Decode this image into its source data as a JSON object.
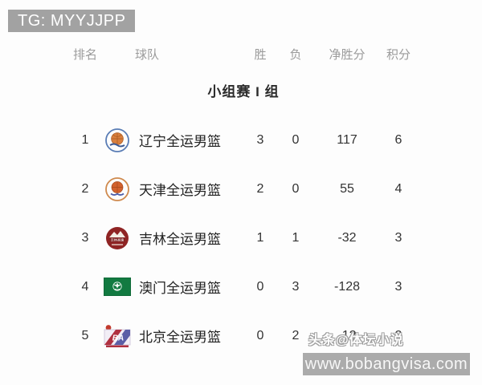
{
  "badge": {
    "label": "TG: MYYJJPP"
  },
  "table": {
    "headers": {
      "rank": "排名",
      "team": "球队",
      "wins": "胜",
      "losses": "负",
      "diff": "净胜分",
      "points": "积分"
    },
    "group_title": "小组赛 I 组",
    "rows": [
      {
        "rank": "1",
        "team": "辽宁全运男篮",
        "wins": "3",
        "losses": "0",
        "diff": "117",
        "points": "6",
        "logo": "liaoning-badge"
      },
      {
        "rank": "2",
        "team": "天津全运男篮",
        "wins": "2",
        "losses": "0",
        "diff": "55",
        "points": "4",
        "logo": "tianjin-badge"
      },
      {
        "rank": "3",
        "team": "吉林全运男篮",
        "wins": "1",
        "losses": "1",
        "diff": "-32",
        "points": "3",
        "logo": "jilin-badge"
      },
      {
        "rank": "4",
        "team": "澳门全运男篮",
        "wins": "0",
        "losses": "3",
        "diff": "-128",
        "points": "3",
        "logo": "macau-flag"
      },
      {
        "rank": "5",
        "team": "北京全运男篮",
        "wins": "0",
        "losses": "2",
        "diff": "-12",
        "points": "2",
        "logo": "beijing-cba-logo"
      }
    ]
  },
  "watermark": {
    "text": "头条@体坛小说"
  },
  "footer": {
    "url": "www.bobangvisa.com"
  },
  "colors": {
    "badge_bg": "#a2a2a2",
    "footer_bg": "#ababab",
    "header_text": "#9b9b9b",
    "body_text": "#333333",
    "macau_green": "#127a41",
    "basketball_orange": "#d97f3e",
    "jilin_red": "#8f2424"
  }
}
